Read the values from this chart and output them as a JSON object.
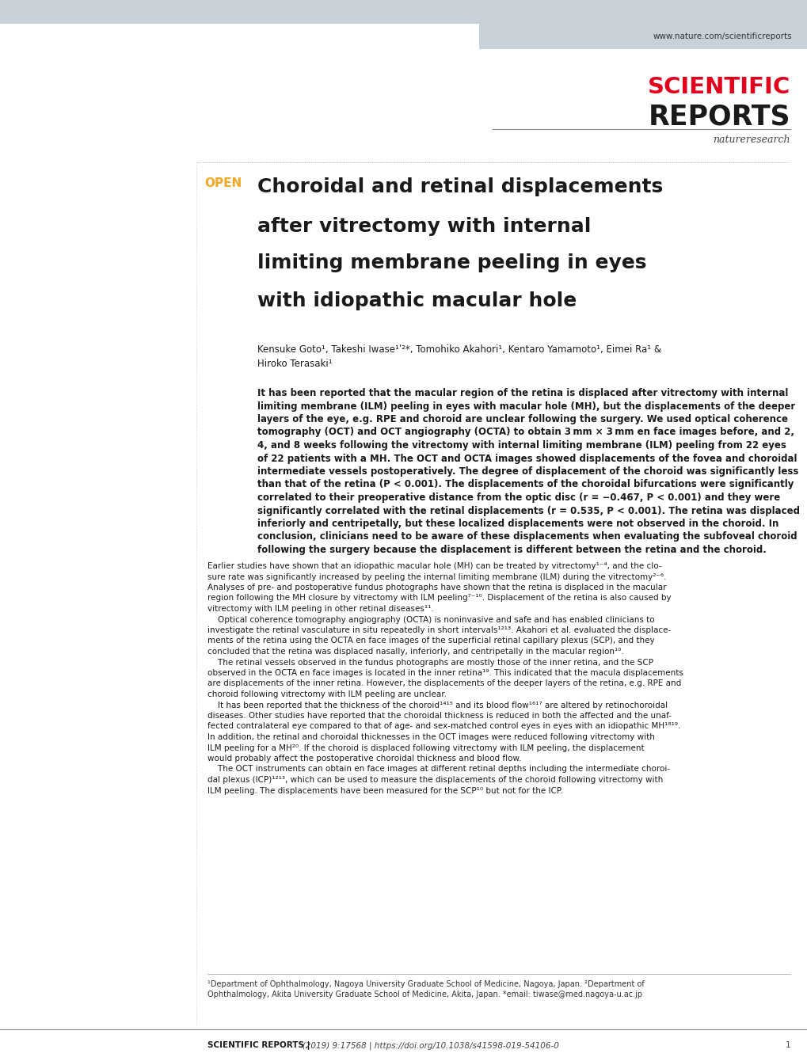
{
  "bg_color": "#ffffff",
  "header_bar_color": "#c8d0d8",
  "header_url": "www.nature.com/scientificreports",
  "sci_reports_red": "#e2001a",
  "open_color": "#f5a623",
  "title_lines": [
    "Choroidal and retinal displacements",
    "after vitrectomy with internal",
    "limiting membrane peeling in eyes",
    "with idiopathic macular hole"
  ],
  "authors_line1": "Kensuke Goto¹, Takeshi Iwase¹ʹ²*, Tomohiko Akahori¹, Kentaro Yamamoto¹, Eimei Ra¹ &",
  "authors_line2": "Hiroko Terasaki¹",
  "abstract_lines": [
    "It has been reported that the macular region of the retina is displaced after vitrectomy with internal",
    "limiting membrane (ILM) peeling in eyes with macular hole (MH), but the displacements of the deeper",
    "layers of the eye, e.g. RPE and choroid are unclear following the surgery. We used optical coherence",
    "tomography (OCT) and OCT angiography (OCTA) to obtain 3 mm × 3 mm en face images before, and 2,",
    "4, and 8 weeks following the vitrectomy with internal limiting membrane (ILM) peeling from 22 eyes",
    "of 22 patients with a MH. The OCT and OCTA images showed displacements of the fovea and choroidal",
    "intermediate vessels postoperatively. The degree of displacement of the choroid was significantly less",
    "than that of the retina (P < 0.001). The displacements of the choroidal bifurcations were significantly",
    "correlated to their preoperative distance from the optic disc (r = −0.467, P < 0.001) and they were",
    "significantly correlated with the retinal displacements (r = 0.535, P < 0.001). The retina was displaced",
    "inferiorly and centripetally, but these localized displacements were not observed in the choroid. In",
    "conclusion, clinicians need to be aware of these displacements when evaluating the subfoveal choroid",
    "following the surgery because the displacement is different between the retina and the choroid."
  ],
  "body_para1_lines": [
    "Earlier studies have shown that an idiopathic macular hole (MH) can be treated by vitrectomy¹⁻⁴, and the clo-",
    "sure rate was significantly increased by peeling the internal limiting membrane (ILM) during the vitrectomy²⁻⁶.",
    "Analyses of pre- and postoperative fundus photographs have shown that the retina is displaced in the macular",
    "region following the MH closure by vitrectomy with ILM peeling⁷⁻¹⁰. Displacement of the retina is also caused by",
    "vitrectomy with ILM peeling in other retinal diseases¹¹."
  ],
  "body_para2_lines": [
    "    Optical coherence tomography angiography (OCTA) is noninvasive and safe and has enabled clinicians to",
    "investigate the retinal vasculature in situ repeatedly in short intervals¹²¹³. Akahori et al. evaluated the displace-",
    "ments of the retina using the OCTA en face images of the superficial retinal capillary plexus (SCP), and they",
    "concluded that the retina was displaced nasally, inferiorly, and centripetally in the macular region¹⁰."
  ],
  "body_para3_lines": [
    "    The retinal vessels observed in the fundus photographs are mostly those of the inner retina, and the SCP",
    "observed in the OCTA en face images is located in the inner retina¹⁹. This indicated that the macula displacements",
    "are displacements of the inner retina. However, the displacements of the deeper layers of the retina, e.g. RPE and",
    "choroid following vitrectomy with ILM peeling are unclear."
  ],
  "body_para4_lines": [
    "    It has been reported that the thickness of the choroid¹⁴¹⁵ and its blood flow¹⁶¹⁷ are altered by retinochoroidal",
    "diseases. Other studies have reported that the choroidal thickness is reduced in both the affected and the unaf-",
    "fected contralateral eye compared to that of age- and sex-matched control eyes in eyes with an idiopathic MH¹⁸¹⁹.",
    "In addition, the retinal and choroidal thicknesses in the OCT images were reduced following vitrectomy with",
    "ILM peeling for a MH²⁰. If the choroid is displaced following vitrectomy with ILM peeling, the displacement",
    "would probably affect the postoperative choroidal thickness and blood flow."
  ],
  "body_para5_lines": [
    "    The OCT instruments can obtain en face images at different retinal depths including the intermediate choroi-",
    "dal plexus (ICP)¹²¹³, which can be used to measure the displacements of the choroid following vitrectomy with",
    "ILM peeling. The displacements have been measured for the SCP¹⁰ but not for the ICP."
  ],
  "footnote_lines": [
    "¹Department of Ophthalmology, Nagoya University Graduate School of Medicine, Nagoya, Japan. ²Department of",
    "Ophthalmology, Akita University Graduate School of Medicine, Akita, Japan. *email: tiwase@med.nagoya-u.ac.jp"
  ],
  "footer_left": "SCIENTIFIC REPORTS |",
  "footer_mid": "   (2019) 9:17568 | https://doi.org/10.1038/s41598-019-54106-0",
  "footer_page": "1"
}
